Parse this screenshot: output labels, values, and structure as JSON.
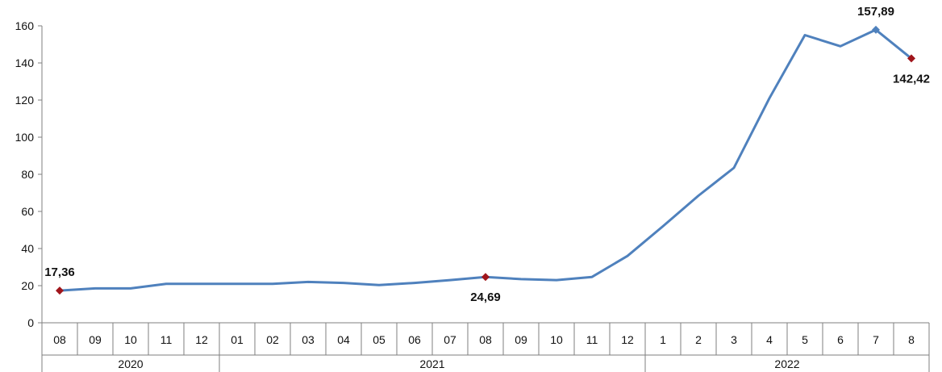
{
  "chart_data": {
    "type": "line",
    "categories": [
      "08",
      "09",
      "10",
      "11",
      "12",
      "01",
      "02",
      "03",
      "04",
      "05",
      "06",
      "07",
      "08",
      "09",
      "10",
      "11",
      "12",
      "1",
      "2",
      "3",
      "4",
      "5",
      "6",
      "7",
      "8"
    ],
    "groups": [
      {
        "label": "2020",
        "start": 0,
        "end": 4
      },
      {
        "label": "2021",
        "start": 5,
        "end": 16
      },
      {
        "label": "2022",
        "start": 17,
        "end": 24
      }
    ],
    "series": [
      {
        "values": [
          17.36,
          18.5,
          18.5,
          21,
          21,
          21,
          21,
          22,
          21.5,
          20.3,
          21.5,
          23,
          24.69,
          23.5,
          23,
          24.7,
          36,
          52,
          68.5,
          83.5,
          121,
          155,
          149,
          157.89,
          142.42
        ],
        "color": "#4f81bd"
      }
    ],
    "annotations": [
      {
        "index": 0,
        "text": "17,36",
        "placement": "above",
        "marker": "diamond",
        "color": "#a0151b"
      },
      {
        "index": 12,
        "text": "24,69",
        "placement": "below",
        "marker": "diamond",
        "color": "#a0151b"
      },
      {
        "index": 23,
        "text": "157,89",
        "placement": "above",
        "marker": "diamond",
        "color": "#4f81bd"
      },
      {
        "index": 24,
        "text": "142,42",
        "placement": "below",
        "marker": "diamond",
        "color": "#a0151b"
      }
    ],
    "yticks": [
      0,
      20,
      40,
      60,
      80,
      100,
      120,
      140,
      160
    ],
    "ylim": [
      0,
      160
    ],
    "grid": false,
    "title": "",
    "xlabel": "",
    "ylabel": ""
  }
}
